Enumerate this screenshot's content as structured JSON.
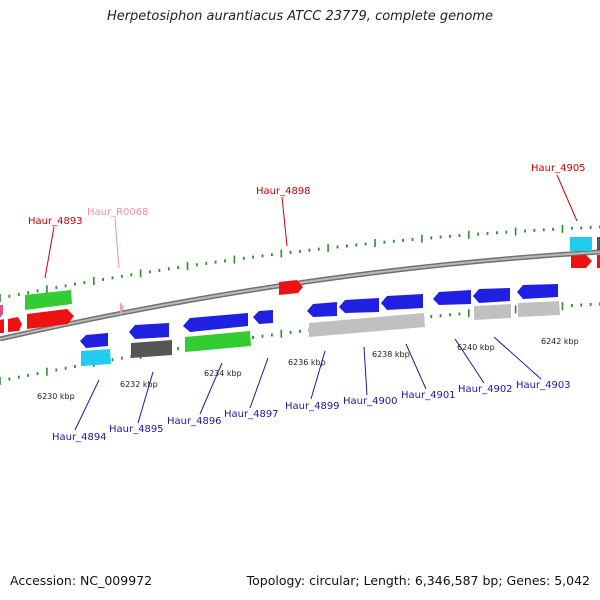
{
  "title": "Herpetosiphon aurantiacus ATCC 23779, complete genome",
  "footer": {
    "accession": "Accession: NC_009972",
    "summary": "Topology: circular; Length: 6,346,587 bp; Genes: 5,042"
  },
  "colors": {
    "backbone": "#8c8c8c",
    "tick": "#2e8b2e",
    "label_red": "#cc0000",
    "label_pink": "#e88fb0",
    "label_blue": "#1a1aaa",
    "red": "#ee1111",
    "green": "#33cc33",
    "blue": "#2020e0",
    "cyan": "#22ccee",
    "dark_gray": "#555555",
    "light_gray": "#c0c0c0",
    "pink": "#e05080",
    "rna_pink": "#f0a0c0"
  },
  "scale_labels": [
    "6230 kbp",
    "6232 kbp",
    "6234 kbp",
    "6236 kbp",
    "6238 kbp",
    "6240 kbp",
    "6242 kbp"
  ],
  "gene_labels": {
    "top": [
      {
        "text": "Haur_4893",
        "color": "label_red"
      },
      {
        "text": "Haur_R0068",
        "color": "label_pink"
      },
      {
        "text": "Haur_4898",
        "color": "label_red"
      },
      {
        "text": "Haur_4905",
        "color": "label_red"
      }
    ],
    "bottom": [
      {
        "text": "Haur_4894",
        "color": "label_blue"
      },
      {
        "text": "Haur_4895",
        "color": "label_blue"
      },
      {
        "text": "Haur_4896",
        "color": "label_blue"
      },
      {
        "text": "Haur_4897",
        "color": "label_blue"
      },
      {
        "text": "Haur_4899",
        "color": "label_blue"
      },
      {
        "text": "Haur_4900",
        "color": "label_blue"
      },
      {
        "text": "Haur_4901",
        "color": "label_blue"
      },
      {
        "text": "Haur_4902",
        "color": "label_blue"
      },
      {
        "text": "Haur_4903",
        "color": "label_blue"
      }
    ]
  }
}
